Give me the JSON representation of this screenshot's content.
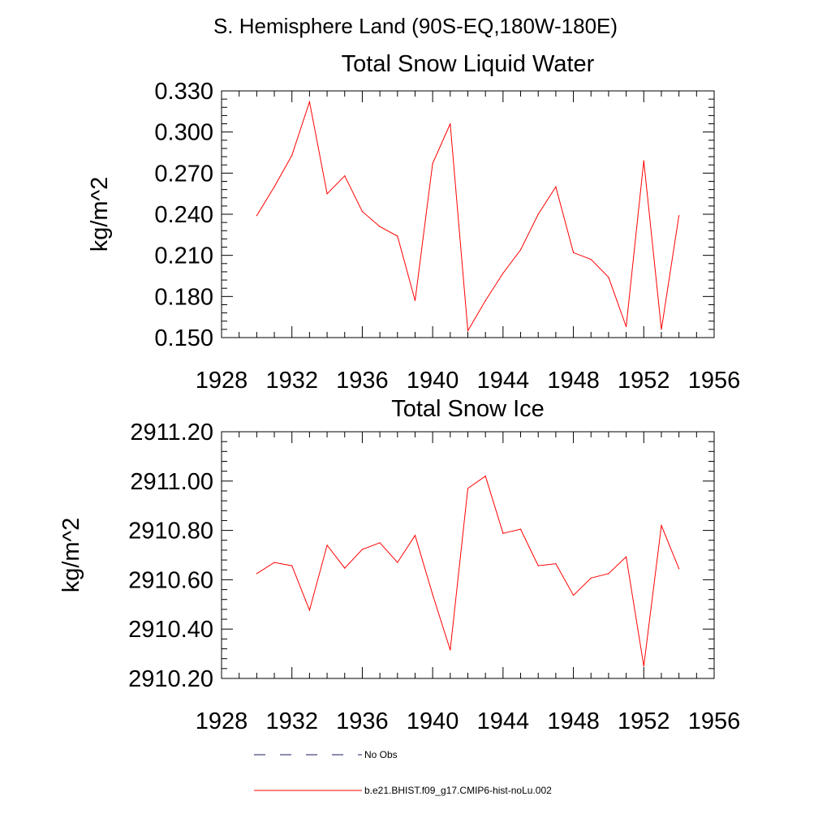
{
  "header": {
    "title": "S. Hemisphere Land (90S-EQ,180W-180E)"
  },
  "legend": {
    "placement": "bottom",
    "items": [
      {
        "label": "No Obs",
        "color": "#1a1a66",
        "style": "dashed"
      },
      {
        "label": "b.e21.BHIST.f09_g17.CMIP6-hist-noLu.002",
        "color": "#ff0000",
        "style": "solid"
      }
    ]
  },
  "chart_data": [
    {
      "type": "line",
      "title": "Total Snow Liquid Water",
      "xlabel": "",
      "ylabel": "kg/m^2",
      "xlim": [
        1928,
        1956
      ],
      "ylim": [
        0.15,
        0.33
      ],
      "x_ticks": [
        "1928",
        "1932",
        "1936",
        "1940",
        "1944",
        "1948",
        "1952",
        "1956"
      ],
      "y_ticks": [
        "0.150",
        "0.180",
        "0.210",
        "0.240",
        "0.270",
        "0.300",
        "0.330"
      ],
      "grid": false,
      "series": [
        {
          "name": "b.e21.BHIST.f09_g17.CMIP6-hist-noLu.002",
          "color": "#ff0000",
          "x": [
            1930,
            1931,
            1932,
            1933,
            1934,
            1935,
            1936,
            1937,
            1938,
            1939,
            1940,
            1941,
            1942,
            1943,
            1944,
            1945,
            1946,
            1947,
            1948,
            1949,
            1950,
            1951,
            1952,
            1953,
            1954
          ],
          "values": [
            0.239,
            0.26,
            0.283,
            0.322,
            0.255,
            0.268,
            0.242,
            0.231,
            0.224,
            0.177,
            0.277,
            0.306,
            0.155,
            0.177,
            0.197,
            0.214,
            0.24,
            0.26,
            0.212,
            0.207,
            0.194,
            0.158,
            0.279,
            0.156,
            0.239
          ]
        }
      ]
    },
    {
      "type": "line",
      "title": "Total Snow Ice",
      "xlabel": "",
      "ylabel": "kg/m^2",
      "xlim": [
        1928,
        1956
      ],
      "ylim": [
        2910.2,
        2911.2
      ],
      "x_ticks": [
        "1928",
        "1932",
        "1936",
        "1940",
        "1944",
        "1948",
        "1952",
        "1956"
      ],
      "y_ticks": [
        "2910.20",
        "2910.40",
        "2910.60",
        "2910.80",
        "2911.00",
        "2911.20"
      ],
      "grid": false,
      "series": [
        {
          "name": "b.e21.BHIST.f09_g17.CMIP6-hist-noLu.002",
          "color": "#ff0000",
          "x": [
            1930,
            1931,
            1932,
            1933,
            1934,
            1935,
            1936,
            1937,
            1938,
            1939,
            1940,
            1941,
            1942,
            1943,
            1944,
            1945,
            1946,
            1947,
            1948,
            1949,
            1950,
            1951,
            1952,
            1953,
            1954
          ],
          "values": [
            2910.625,
            2910.67,
            2910.657,
            2910.477,
            2910.74,
            2910.647,
            2910.723,
            2910.75,
            2910.67,
            2910.78,
            2910.54,
            2910.315,
            2910.97,
            2911.02,
            2910.788,
            2910.805,
            2910.657,
            2910.665,
            2910.537,
            2910.607,
            2910.625,
            2910.693,
            2910.25,
            2910.82,
            2910.645
          ]
        }
      ]
    }
  ]
}
